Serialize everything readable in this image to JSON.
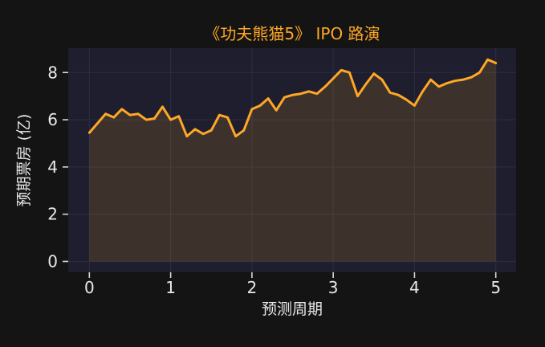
{
  "figure": {
    "background": "#141414"
  },
  "chart_data": {
    "type": "area",
    "title": "《功夫熊猫5》 IPO 路演",
    "xlabel": "预测周期",
    "ylabel": "预期票房 (亿)",
    "legend": "none",
    "grid": true,
    "x_ticks": [
      0,
      1,
      2,
      3,
      4,
      5
    ],
    "y_ticks": [
      0,
      2,
      4,
      6,
      8
    ],
    "xlim": [
      -0.26,
      5.25
    ],
    "ylim": [
      -0.46,
      9.03
    ],
    "x": [
      0.0,
      0.1,
      0.2,
      0.3,
      0.4,
      0.5,
      0.6,
      0.7,
      0.8,
      0.9,
      1.0,
      1.1,
      1.2,
      1.3,
      1.4,
      1.5,
      1.6,
      1.7,
      1.8,
      1.9,
      2.0,
      2.1,
      2.2,
      2.3,
      2.4,
      2.5,
      2.6,
      2.7,
      2.8,
      2.9,
      3.0,
      3.1,
      3.2,
      3.3,
      3.4,
      3.5,
      3.6,
      3.7,
      3.8,
      3.9,
      4.0,
      4.1,
      4.2,
      4.3,
      4.4,
      4.5,
      4.6,
      4.7,
      4.8,
      4.9,
      5.0
    ],
    "values": [
      5.45,
      5.85,
      6.25,
      6.1,
      6.45,
      6.2,
      6.25,
      6.0,
      6.05,
      6.55,
      6.0,
      6.15,
      5.3,
      5.6,
      5.4,
      5.55,
      6.2,
      6.1,
      5.3,
      5.55,
      6.45,
      6.6,
      6.9,
      6.4,
      6.95,
      7.05,
      7.1,
      7.2,
      7.1,
      7.4,
      7.75,
      8.1,
      8.0,
      7.0,
      7.5,
      7.95,
      7.7,
      7.15,
      7.05,
      6.85,
      6.6,
      7.2,
      7.7,
      7.4,
      7.55,
      7.65,
      7.7,
      7.8,
      8.0,
      8.55,
      8.4
    ],
    "baseline": 0,
    "colors": {
      "line": "#ffa726",
      "fill": "rgba(255,167,38,0.14)",
      "plot_background": "#1e1e2e",
      "gridline": "#2b2b40",
      "figure_background": "#141414",
      "title": "#ffa726",
      "tick_label": "#e8e8e8",
      "axis_label": "#e8e8e8",
      "tick_mark": "#d8d8d8"
    }
  }
}
